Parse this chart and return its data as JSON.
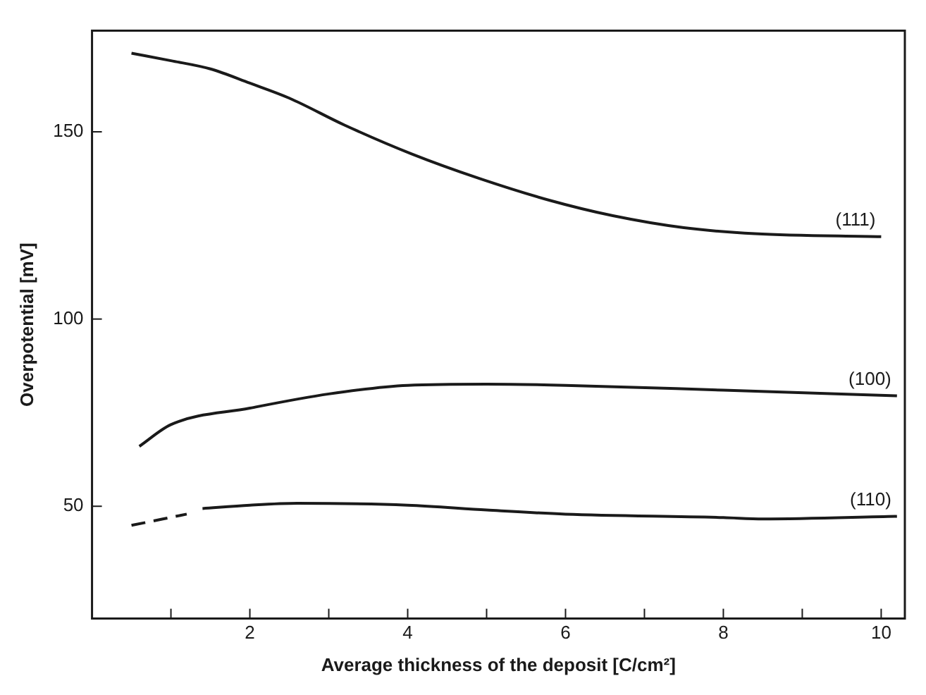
{
  "chart_data": {
    "type": "line",
    "xlabel": "Average thickness of the deposit [C/cm²]",
    "ylabel": "Overpotential [mV]",
    "xlim": [
      0,
      10.3
    ],
    "ylim": [
      20,
      177
    ],
    "xticks": [
      {
        "value": 1,
        "label": null
      },
      2,
      {
        "value": 3,
        "label": null
      },
      4,
      {
        "value": 5,
        "label": null
      },
      6,
      {
        "value": 7,
        "label": null
      },
      8,
      {
        "value": 9,
        "label": null
      },
      10
    ],
    "yticks": [
      50,
      100,
      150
    ],
    "grid": false,
    "legend": false,
    "marker": "none",
    "series": [
      {
        "name": "(111)",
        "color": "#1a1a1a",
        "line_style": "solid",
        "x": [
          0.5,
          1,
          1.5,
          2,
          2.5,
          3.2,
          4.05,
          4.9,
          5.8,
          6.6,
          7.5,
          8.4,
          10
        ],
        "values": [
          171,
          169,
          166.8,
          163,
          159,
          151.8,
          144.1,
          137.6,
          131.7,
          127.6,
          124.4,
          122.8,
          122
        ]
      },
      {
        "name": "(100)",
        "color": "#1a1a1a",
        "line_style": "solid",
        "x": [
          0.6,
          1,
          2,
          3,
          4,
          5,
          6,
          8,
          10.2
        ],
        "values": [
          66,
          71.8,
          76.2,
          80,
          82.3,
          82.6,
          82.3,
          81,
          79.5
        ]
      },
      {
        "name": "(110)",
        "color": "#1a1a1a",
        "line_style": "solid",
        "x": [
          1.4,
          2,
          2.6,
          4,
          5,
          6,
          8,
          8.5,
          10.2
        ],
        "values": [
          49.4,
          50.3,
          50.8,
          50.3,
          49,
          47.9,
          47,
          46.6,
          47.3
        ]
      },
      {
        "color": "#1a1a1a",
        "line_style": "dashed",
        "x": [
          0.5,
          1.2
        ],
        "values": [
          44.9,
          47.9
        ]
      }
    ]
  }
}
